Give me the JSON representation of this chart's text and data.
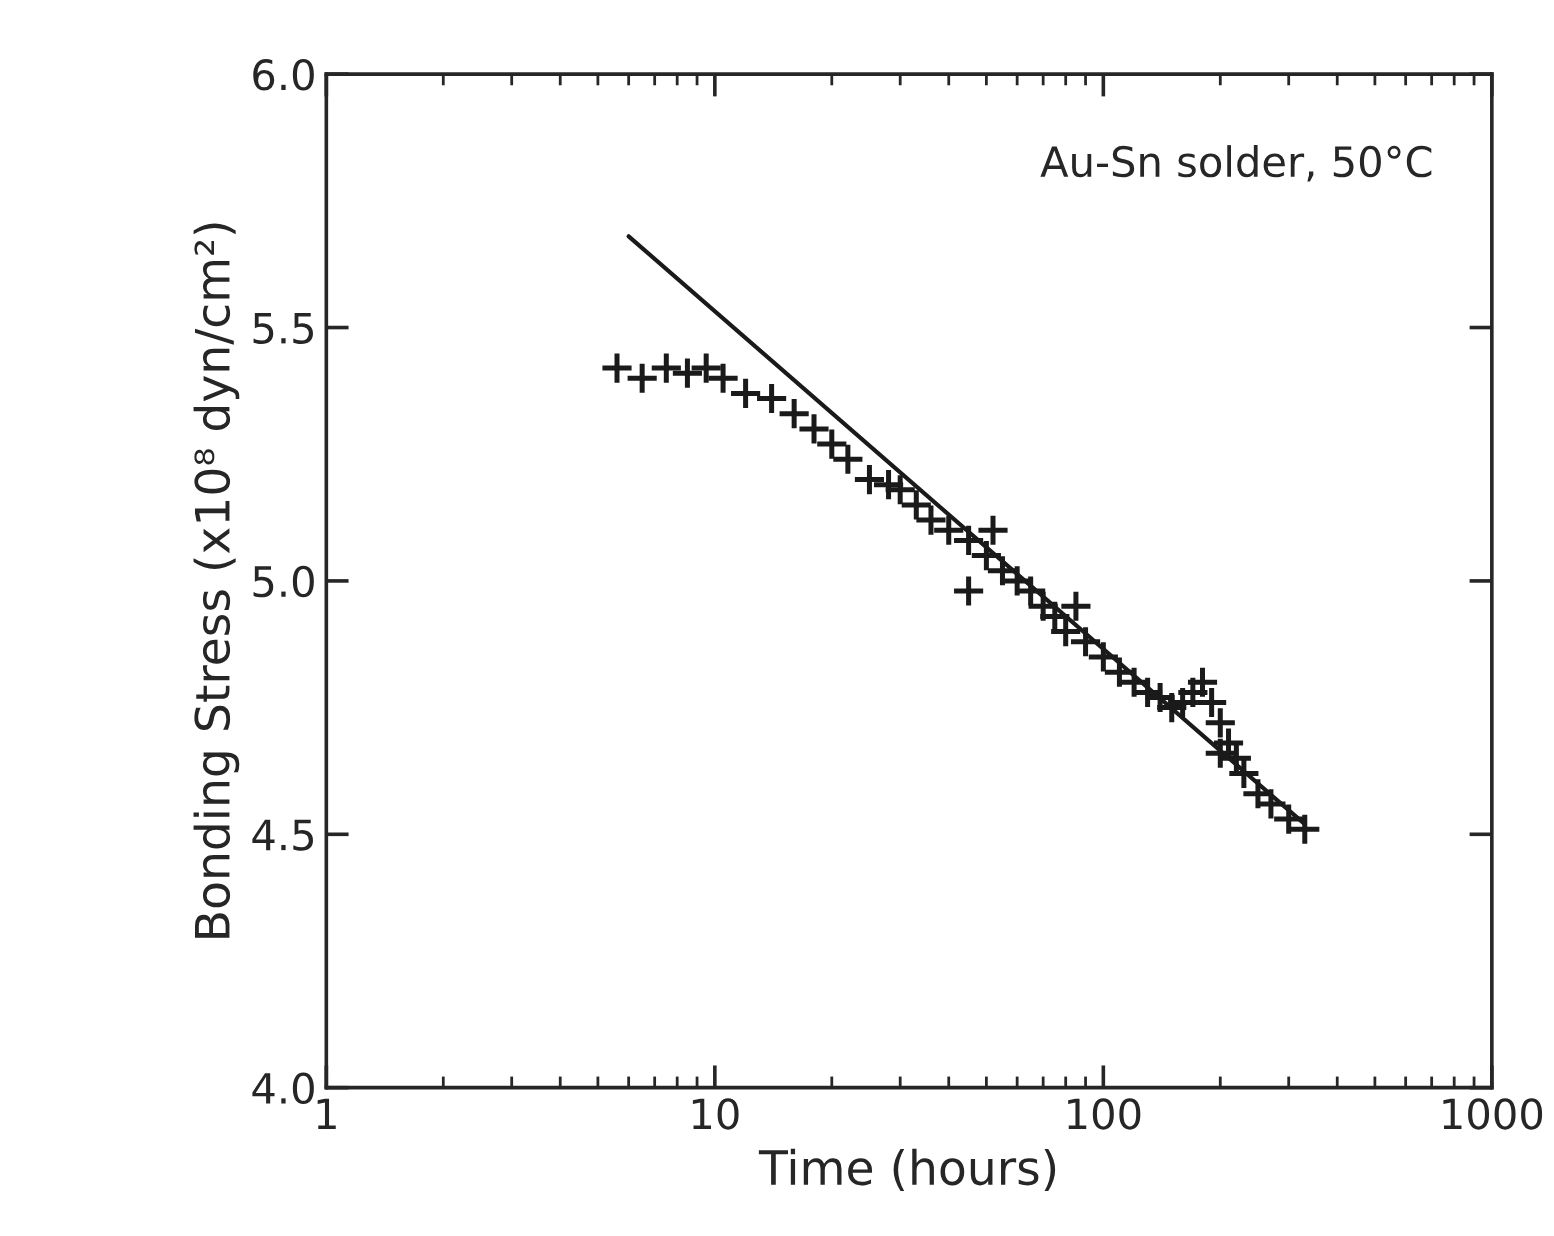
{
  "chart_data": {
    "type": "scatter",
    "xlabel": "Time (hours)",
    "ylabel": "Bonding Stress (x10⁸ dyn/cm²)",
    "annotations": [
      "Au-Sn solder, 50°C"
    ],
    "log": "x",
    "xlim": [
      1,
      1000
    ],
    "xticks": [
      1,
      10,
      100,
      1000
    ],
    "ylim": [
      4.0,
      6.0
    ],
    "yticks": [
      {
        "value": 4.0,
        "label": "4.0"
      },
      {
        "value": 4.5,
        "label": "4.5"
      },
      {
        "value": 5.0,
        "label": "5.0"
      },
      {
        "value": 5.5,
        "label": "5.5"
      },
      {
        "value": 6.0,
        "label": "6.0"
      }
    ],
    "grid": false,
    "series": [
      {
        "marker": "cross",
        "color": "#1a1a1a",
        "x": [
          5.6,
          6.5,
          7.5,
          8.5,
          9.5,
          10.5,
          12,
          14,
          16,
          18,
          20,
          22,
          25,
          28,
          30,
          33,
          36,
          40,
          45,
          45,
          50,
          52,
          55,
          60,
          65,
          70,
          75,
          80,
          85,
          90,
          100,
          110,
          120,
          130,
          140,
          150,
          160,
          170,
          180,
          190,
          200,
          200,
          210,
          220,
          230,
          250,
          270,
          300,
          330
        ],
        "values": [
          5.42,
          5.4,
          5.42,
          5.41,
          5.42,
          5.4,
          5.37,
          5.36,
          5.33,
          5.3,
          5.27,
          5.24,
          5.2,
          5.19,
          5.18,
          5.15,
          5.12,
          5.1,
          5.08,
          4.98,
          5.05,
          5.1,
          5.02,
          5.0,
          4.98,
          4.95,
          4.93,
          4.9,
          4.95,
          4.88,
          4.85,
          4.82,
          4.8,
          4.78,
          4.77,
          4.75,
          4.76,
          4.78,
          4.8,
          4.76,
          4.72,
          4.66,
          4.68,
          4.65,
          4.62,
          4.58,
          4.56,
          4.53,
          4.51
        ]
      },
      {
        "type": "line",
        "marker": "none",
        "color": "#1a1a1a",
        "x": [
          6,
          330
        ],
        "values": [
          5.68,
          4.52
        ]
      }
    ]
  }
}
